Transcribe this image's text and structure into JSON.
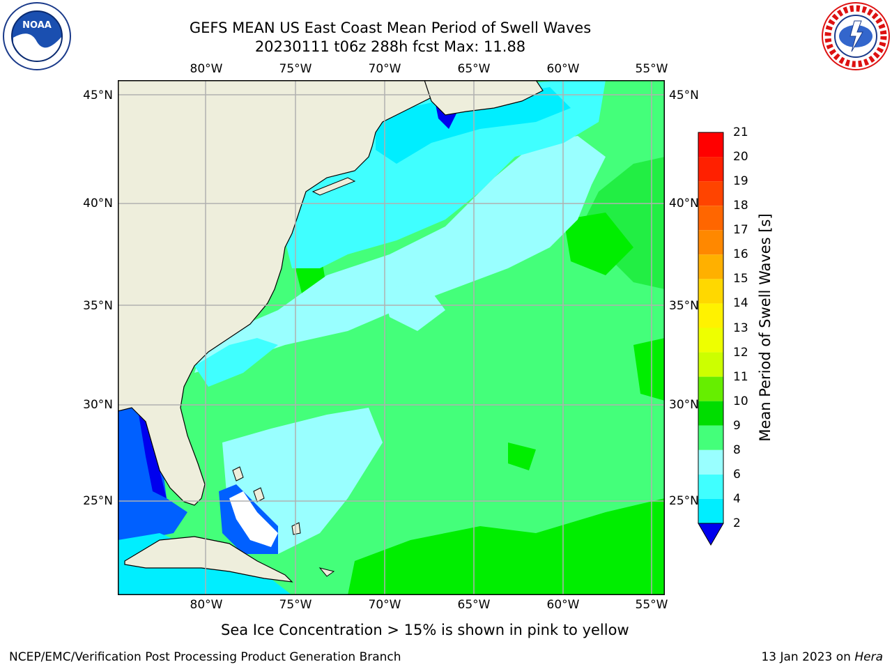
{
  "title_line1": "GEFS MEAN US East Coast Mean Period of Swell Waves",
  "title_line2": "20230111 t06z 288h fcst   Max: 11.88",
  "map": {
    "lon_ticks": [
      "80°W",
      "75°W",
      "70°W",
      "65°W",
      "60°W",
      "55°W"
    ],
    "lat_ticks": [
      "45°N",
      "40°N",
      "35°N",
      "30°N",
      "25°N"
    ],
    "colors": {
      "land": "#eeeedc",
      "coast": "#000000",
      "grid": "#b0b0b0",
      "deep_blue": "#0000ee",
      "blue": "#0060ff",
      "cyan": "#00eeff",
      "light_cyan": "#40ffff",
      "pale_cyan": "#99ffff",
      "light_green": "#44ff7a",
      "green": "#00ee00"
    }
  },
  "colorbar": {
    "title": "Mean Period of Swell Waves [s]",
    "labels": [
      "21",
      "20",
      "19",
      "18",
      "17",
      "16",
      "15",
      "14",
      "13",
      "12",
      "11",
      "10",
      "9",
      "8",
      "6",
      "4",
      "2"
    ],
    "colors": [
      "#ff0000",
      "#ff2000",
      "#ff4400",
      "#ff6600",
      "#ff8800",
      "#ffb000",
      "#ffd800",
      "#fff200",
      "#eeff00",
      "#ccff00",
      "#66ee00",
      "#00dd00",
      "#44ff7a",
      "#99ffff",
      "#40ffff",
      "#00eeff",
      "#0060ff"
    ],
    "extend_color": "#0000ee"
  },
  "subtitle": "Sea Ice Concentration > 15% is shown in pink to yellow",
  "footer_left": "NCEP/EMC/Verification Post Processing Product Generation Branch",
  "footer_right_date": "13 Jan 2023 on",
  "footer_right_host": "Hera"
}
